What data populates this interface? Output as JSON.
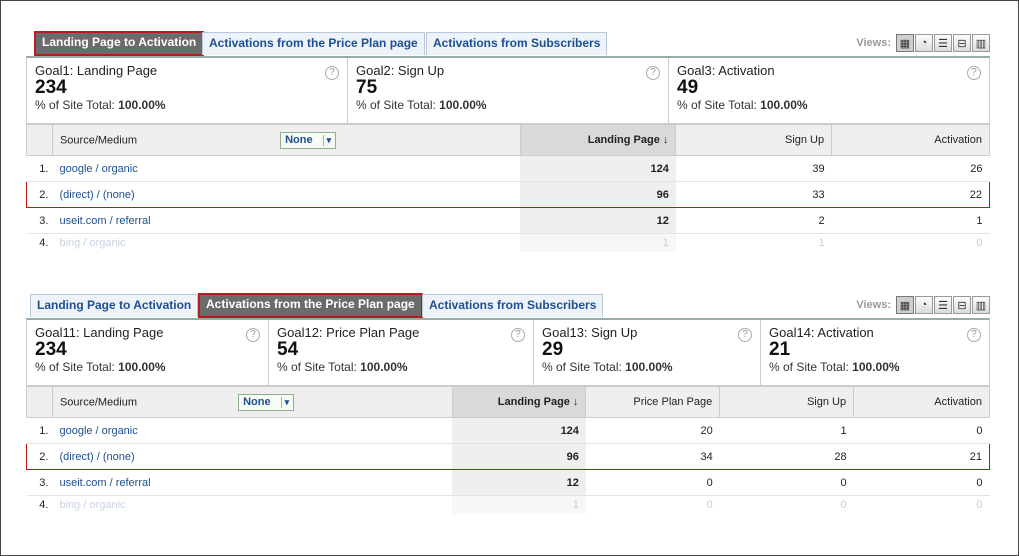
{
  "views_label": "Views:",
  "view_icons": [
    "table-view-icon",
    "pie-view-icon",
    "bar-view-icon",
    "comparison-view-icon",
    "pivot-view-icon"
  ],
  "panels": [
    {
      "tabs": [
        "Landing Page to Activation",
        "Activations from the Price Plan page",
        "Activations from Subscribers"
      ],
      "active_tab": 0,
      "goals": [
        {
          "name": "Goal1: Landing Page",
          "value": "234",
          "pct_label": "% of Site Total:",
          "pct": "100.00%"
        },
        {
          "name": "Goal2: Sign Up",
          "value": "75",
          "pct_label": "% of Site Total:",
          "pct": "100.00%"
        },
        {
          "name": "Goal3: Activation",
          "value": "49",
          "pct_label": "% of Site Total:",
          "pct": "100.00%"
        }
      ],
      "source_header": "Source/Medium",
      "secondary": "None",
      "columns": [
        "Landing Page",
        "Sign Up",
        "Activation"
      ],
      "rows": [
        {
          "n": "1.",
          "src": "google / organic",
          "vals": [
            "124",
            "39",
            "26"
          ]
        },
        {
          "n": "2.",
          "src": "(direct) / (none)",
          "vals": [
            "96",
            "33",
            "22"
          ]
        },
        {
          "n": "3.",
          "src": "useit.com / referral",
          "vals": [
            "12",
            "2",
            "1"
          ]
        },
        {
          "n": "4.",
          "src": "bing / organic",
          "vals": [
            "1",
            "1",
            "0"
          ]
        }
      ]
    },
    {
      "tabs": [
        "Landing Page to Activation",
        "Activations from the Price Plan page",
        "Activations from Subscribers"
      ],
      "active_tab": 1,
      "goals": [
        {
          "name": "Goal11: Landing Page",
          "value": "234",
          "pct_label": "% of Site Total:",
          "pct": "100.00%"
        },
        {
          "name": "Goal12: Price Plan Page",
          "value": "54",
          "pct_label": "% of Site Total:",
          "pct": "100.00%"
        },
        {
          "name": "Goal13: Sign Up",
          "value": "29",
          "pct_label": "% of Site Total:",
          "pct": "100.00%"
        },
        {
          "name": "Goal14: Activation",
          "value": "21",
          "pct_label": "% of Site Total:",
          "pct": "100.00%"
        }
      ],
      "source_header": "Source/Medium",
      "secondary": "None",
      "columns": [
        "Landing Page",
        "Price Plan Page",
        "Sign Up",
        "Activation"
      ],
      "rows": [
        {
          "n": "1.",
          "src": "google / organic",
          "vals": [
            "124",
            "20",
            "1",
            "0"
          ]
        },
        {
          "n": "2.",
          "src": "(direct) / (none)",
          "vals": [
            "96",
            "34",
            "28",
            "21"
          ]
        },
        {
          "n": "3.",
          "src": "useit.com / referral",
          "vals": [
            "12",
            "0",
            "0",
            "0"
          ]
        },
        {
          "n": "4.",
          "src": "bing / organic",
          "vals": [
            "1",
            "0",
            "0",
            "0"
          ]
        }
      ]
    }
  ]
}
